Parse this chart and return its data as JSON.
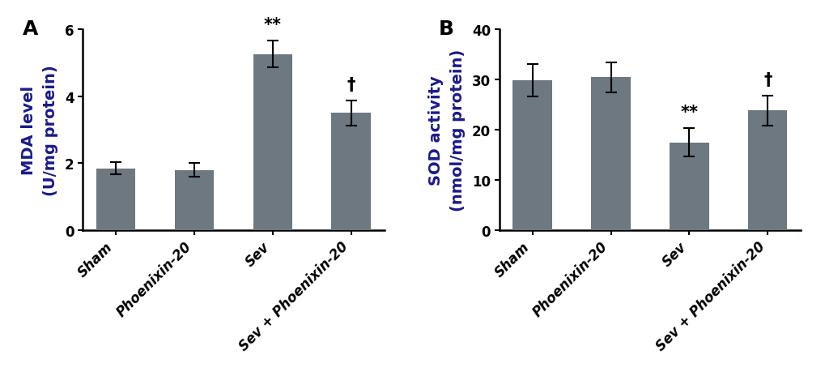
{
  "panel_A": {
    "title": "A",
    "categories": [
      "Sham",
      "Phoenixin-20",
      "Sev",
      "Sev + Phoenixin-20"
    ],
    "values": [
      1.85,
      1.8,
      5.25,
      3.5
    ],
    "errors": [
      0.18,
      0.2,
      0.4,
      0.38
    ],
    "ylabel_line1": "MDA level",
    "ylabel_line2": "(U/mg protein)",
    "ylim": [
      0,
      6
    ],
    "yticks": [
      0,
      2,
      4,
      6
    ],
    "annotations": [
      "",
      "",
      "**",
      "†"
    ],
    "bar_color": "#6d7880"
  },
  "panel_B": {
    "title": "B",
    "categories": [
      "Sham",
      "Phoenixin-20",
      "Sev",
      "Sev + Phoenixin-20"
    ],
    "values": [
      29.8,
      30.4,
      17.5,
      23.8
    ],
    "errors": [
      3.2,
      3.0,
      2.8,
      3.0
    ],
    "ylabel_line1": "SOD activity",
    "ylabel_line2": "(nmol/mg protein)",
    "ylim": [
      0,
      40
    ],
    "yticks": [
      0,
      10,
      20,
      30,
      40
    ],
    "annotations": [
      "",
      "",
      "**",
      "†"
    ],
    "bar_color": "#6d7880"
  },
  "background_color": "#ffffff",
  "tick_label_fontsize": 12,
  "axis_label_fontsize": 14,
  "title_fontsize": 18,
  "annotation_fontsize": 15,
  "xlabel_color": "#000000",
  "ylabel_color": "#1a1a8c",
  "title_color": "#000000"
}
